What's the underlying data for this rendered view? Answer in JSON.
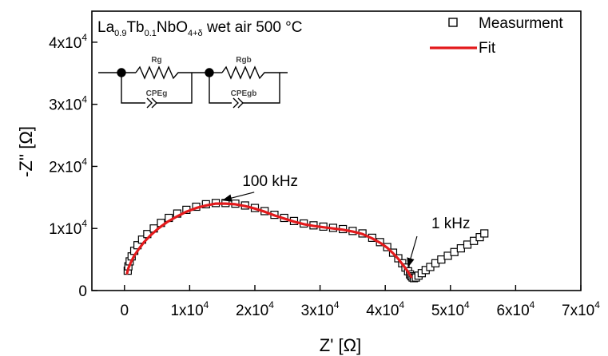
{
  "chart_data": {
    "type": "scatter",
    "title": {
      "parts": [
        {
          "text": "La",
          "style": "normal"
        },
        {
          "text": "0.9",
          "style": "sub"
        },
        {
          "text": "Tb",
          "style": "normal"
        },
        {
          "text": "0.1",
          "style": "sub"
        },
        {
          "text": "NbO",
          "style": "normal"
        },
        {
          "text": "4+δ",
          "style": "sub"
        },
        {
          "text": " wet air 500 °C",
          "style": "normal"
        }
      ]
    },
    "xlabel": "Z' [Ω]",
    "ylabel": "-Z'' [Ω]",
    "xlim": [
      -5000,
      70000
    ],
    "ylim": [
      0,
      45000
    ],
    "x_ticks": [
      {
        "value": 0,
        "base": "0",
        "exp": ""
      },
      {
        "value": 10000,
        "base": "1x10",
        "exp": "4"
      },
      {
        "value": 20000,
        "base": "2x10",
        "exp": "4"
      },
      {
        "value": 30000,
        "base": "3x10",
        "exp": "4"
      },
      {
        "value": 40000,
        "base": "4x10",
        "exp": "4"
      },
      {
        "value": 50000,
        "base": "5x10",
        "exp": "4"
      },
      {
        "value": 60000,
        "base": "6x10",
        "exp": "4"
      },
      {
        "value": 70000,
        "base": "7x10",
        "exp": "4"
      }
    ],
    "y_ticks": [
      {
        "value": 0,
        "base": "0",
        "exp": ""
      },
      {
        "value": 10000,
        "base": "1x10",
        "exp": "4"
      },
      {
        "value": 20000,
        "base": "2x10",
        "exp": "4"
      },
      {
        "value": 30000,
        "base": "3x10",
        "exp": "4"
      },
      {
        "value": 40000,
        "base": "4x10",
        "exp": "4"
      }
    ],
    "legend": {
      "placement": "top-right",
      "entries": [
        {
          "label": "Measurment",
          "marker": "open-square",
          "color": "#000000"
        },
        {
          "label": "Fit",
          "marker": "line",
          "color": "#e31a1c"
        }
      ]
    },
    "series": [
      {
        "name": "Measurment",
        "marker": "open-square",
        "color": "#000000",
        "x": [
          500,
          600,
          800,
          1100,
          1500,
          2000,
          2700,
          3500,
          4500,
          5600,
          6800,
          8100,
          9500,
          11000,
          12500,
          14000,
          15500,
          17000,
          18500,
          20000,
          21500,
          23000,
          24500,
          26000,
          27500,
          29000,
          30500,
          32000,
          33500,
          35000,
          36500,
          38000,
          39200,
          40300,
          41200,
          42000,
          42600,
          43100,
          43500,
          43800,
          44000,
          44200,
          44400,
          44700,
          45100,
          45600,
          46200,
          46900,
          47700,
          48600,
          49600,
          50600,
          51600,
          52600,
          53600,
          54500,
          55200
        ],
        "y": [
          3200,
          3900,
          4700,
          5500,
          6400,
          7300,
          8200,
          9100,
          10000,
          10900,
          11700,
          12400,
          13000,
          13500,
          13900,
          14100,
          14100,
          14000,
          13700,
          13300,
          12800,
          12200,
          11700,
          11200,
          10800,
          10500,
          10300,
          10100,
          9900,
          9600,
          9200,
          8500,
          7800,
          7000,
          6100,
          5200,
          4400,
          3700,
          3100,
          2600,
          2300,
          2100,
          2000,
          2100,
          2400,
          2800,
          3300,
          3800,
          4400,
          5000,
          5600,
          6200,
          6800,
          7400,
          8000,
          8600,
          9200
        ]
      },
      {
        "name": "Fit",
        "marker": "line",
        "color": "#e31a1c",
        "x": [
          400,
          600,
          1000,
          1500,
          2200,
          3000,
          4000,
          5200,
          6500,
          8000,
          9500,
          11000,
          12500,
          14000,
          15500,
          17000,
          18500,
          20000,
          21500,
          23000,
          24500,
          26000,
          27500,
          29000,
          30500,
          32000,
          33500,
          35000,
          36500,
          38000,
          39200,
          40300,
          41200,
          42000,
          42600,
          43100,
          43500,
          43800,
          44000
        ],
        "y": [
          2800,
          3600,
          4600,
          5600,
          6700,
          7800,
          8900,
          10000,
          11000,
          11900,
          12700,
          13300,
          13700,
          14000,
          14000,
          13900,
          13600,
          13200,
          12700,
          12100,
          11600,
          11100,
          10700,
          10400,
          10200,
          10000,
          9800,
          9500,
          9100,
          8400,
          7700,
          6900,
          6000,
          5100,
          4300,
          3600,
          3000,
          2500,
          2200
        ]
      }
    ],
    "annotations": [
      {
        "text": "100 kHz",
        "point": [
          15000,
          14300
        ]
      },
      {
        "text": "1 kHz",
        "point": [
          43400,
          3600
        ]
      }
    ],
    "circuit": {
      "elements": [
        {
          "label": "Rg"
        },
        {
          "label": "CPEg"
        },
        {
          "label": "Rgb"
        },
        {
          "label": "CPEgb"
        }
      ]
    },
    "grid": false
  }
}
